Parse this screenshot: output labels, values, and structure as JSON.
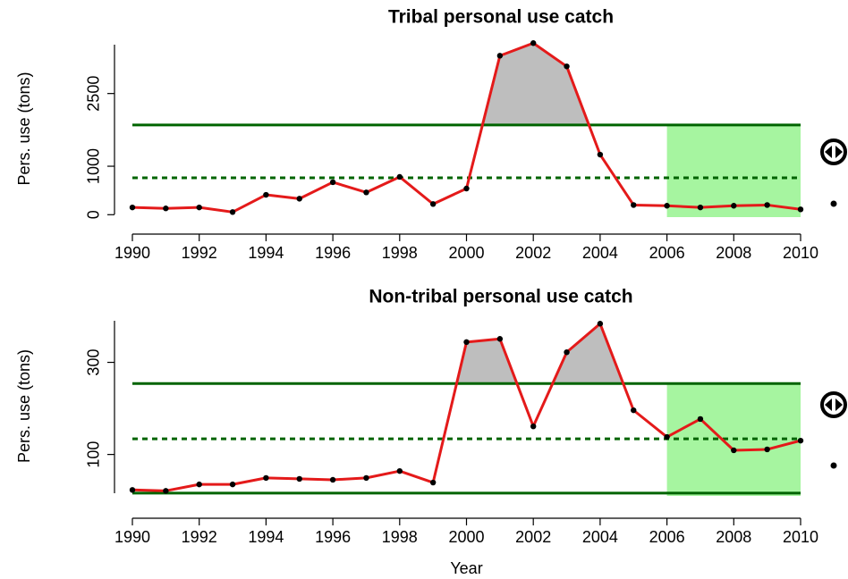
{
  "chart_data": [
    {
      "type": "line",
      "title": "Tribal personal use catch",
      "ylabel": "Pers. use (tons)",
      "x": [
        1990,
        1991,
        1992,
        1993,
        1994,
        1995,
        1996,
        1997,
        1998,
        1999,
        2000,
        2001,
        2002,
        2003,
        2004,
        2005,
        2006,
        2007,
        2008,
        2009,
        2010
      ],
      "series": [
        {
          "color": "#e41a1a",
          "values": [
            150,
            130,
            150,
            55,
            410,
            330,
            670,
            460,
            780,
            220,
            540,
            3280,
            3540,
            3060,
            1240,
            200,
            185,
            150,
            185,
            200,
            110
          ]
        }
      ],
      "xlim": [
        1990,
        2010
      ],
      "xticks": [
        1990,
        1992,
        1994,
        1996,
        1998,
        2000,
        2002,
        2004,
        2006,
        2008,
        2010
      ],
      "ylim": [
        -50,
        3600
      ],
      "yticks": [
        0,
        1000,
        2500
      ],
      "hlines": [
        {
          "value": 1850,
          "color": "#006400",
          "dashed": false
        },
        {
          "value": 760,
          "color": "#006400",
          "dashed": true
        }
      ],
      "fill_color": "#bebebe",
      "highlight_x": [
        2006,
        2010
      ],
      "highlight_color": "#a6f5a0"
    },
    {
      "type": "line",
      "title": "Non-tribal personal use catch",
      "ylabel": "Pers. use (tons)",
      "xlabel": "Year",
      "x": [
        1990,
        1991,
        1992,
        1993,
        1994,
        1995,
        1996,
        1997,
        1998,
        1999,
        2000,
        2001,
        2002,
        2003,
        2004,
        2005,
        2006,
        2007,
        2008,
        2009,
        2010
      ],
      "series": [
        {
          "color": "#e41a1a",
          "values": [
            23,
            21,
            35,
            35,
            49,
            47,
            45,
            49,
            64,
            39,
            344,
            351,
            161,
            322,
            384,
            196,
            138,
            177,
            109,
            111,
            130
          ]
        }
      ],
      "xlim": [
        1990,
        2010
      ],
      "xticks": [
        1990,
        1992,
        1994,
        1996,
        1998,
        2000,
        2002,
        2004,
        2006,
        2008,
        2010
      ],
      "ylim": [
        10,
        400
      ],
      "yticks": [
        100,
        300
      ],
      "hlines": [
        {
          "value": 254,
          "color": "#006400",
          "dashed": false
        },
        {
          "value": 134,
          "color": "#006400",
          "dashed": true
        },
        {
          "value": 16,
          "color": "#006400",
          "dashed": false
        }
      ],
      "fill_color": "#bebebe",
      "highlight_x": [
        2006,
        2010
      ],
      "highlight_color": "#a6f5a0"
    }
  ]
}
